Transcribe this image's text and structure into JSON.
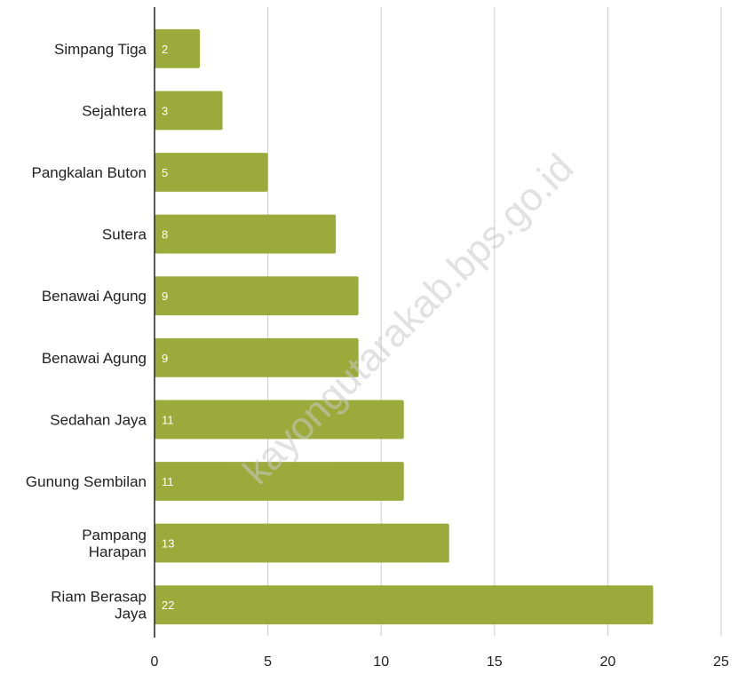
{
  "chart_data": {
    "type": "bar",
    "orientation": "horizontal",
    "categories": [
      "Simpang Tiga",
      "Sejahtera",
      "Pangkalan Buton",
      "Sutera",
      "Benawai Agung",
      "Benawai Agung",
      "Sedahan Jaya",
      "Gunung Sembilan",
      "Pampang Harapan",
      "Riam Berasap Jaya"
    ],
    "category_lines": [
      [
        "Simpang Tiga"
      ],
      [
        "Sejahtera"
      ],
      [
        "Pangkalan Buton"
      ],
      [
        "Sutera"
      ],
      [
        "Benawai Agung"
      ],
      [
        "Benawai Agung"
      ],
      [
        "Sedahan Jaya"
      ],
      [
        "Gunung Sembilan"
      ],
      [
        "Pampang",
        "Harapan"
      ],
      [
        "Riam Berasap",
        "Jaya"
      ]
    ],
    "values": [
      2,
      3,
      5,
      8,
      9,
      9,
      11,
      11,
      13,
      22
    ],
    "xlim": [
      0,
      25
    ],
    "xticks": [
      0,
      5,
      10,
      15,
      20,
      25
    ],
    "grid": true,
    "legend": "none",
    "bar_color": "#9aab3c",
    "grid_color": "#cccccc",
    "axis_color": "#222222",
    "watermark": "kayongutarakab.bps.go.id"
  }
}
